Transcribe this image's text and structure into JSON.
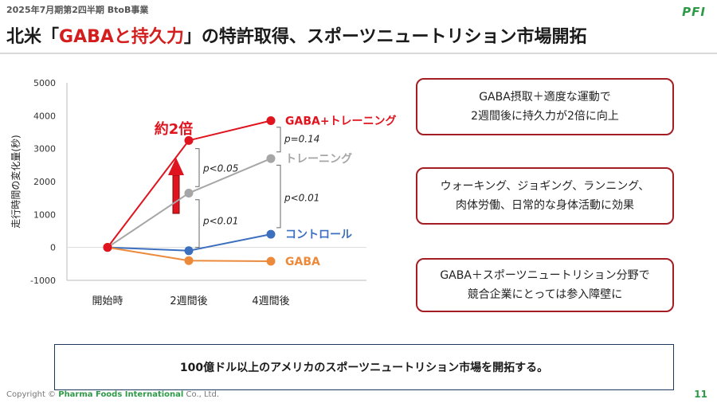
{
  "header": {
    "period": "2025年7月期第2四半期 BtoB事業",
    "logo": "PFI",
    "title_prefix": "北米「",
    "title_highlight": "GABAと持久力",
    "title_suffix": "」の特許取得、スポーツニュートリション市場開拓"
  },
  "chart_data": {
    "type": "line",
    "ylabel": "走行時間の変化量(秒)",
    "categories": [
      "開始時",
      "2週間後",
      "4週間後"
    ],
    "yticks": [
      5000,
      4000,
      3000,
      2000,
      1000,
      0,
      -1000
    ],
    "ylim": [
      -1000,
      5000
    ],
    "series": [
      {
        "name": "GABA+トレーニング",
        "color": "#e0141e",
        "values": [
          0,
          3250,
          3850
        ]
      },
      {
        "name": "トレーニング",
        "color": "#a6a6a6",
        "values": [
          0,
          1650,
          2700
        ]
      },
      {
        "name": "コントロール",
        "color": "#3d6fbf",
        "values": [
          0,
          -100,
          400
        ]
      },
      {
        "name": "GABA",
        "color": "#ec8a3c",
        "values": [
          0,
          -400,
          -420
        ]
      }
    ],
    "annotations": {
      "arrow_label": "約2倍",
      "p1": "p<0.05",
      "p2": "p<0.01",
      "p3": "p=0.14",
      "p4": "p<0.01"
    }
  },
  "boxes": [
    {
      "line1": "GABA摂取＋適度な運動で",
      "line2": "2週間後に持久力が2倍に向上"
    },
    {
      "line1": "ウォーキング、ジョギング、ランニング、",
      "line2": "肉体労働、日常的な身体活動に効果"
    },
    {
      "line1": "GABA＋スポーツニュートリション分野で",
      "line2": "競合企業にとっては参入障壁に"
    }
  ],
  "bottom_message": "100億ドル以上のアメリカのスポーツニュートリション市場を開拓する。",
  "footer": {
    "copyright_prefix": "Copyright © ",
    "company": "Pharma Foods International",
    "copyright_suffix": " Co., Ltd.",
    "page": "11"
  }
}
